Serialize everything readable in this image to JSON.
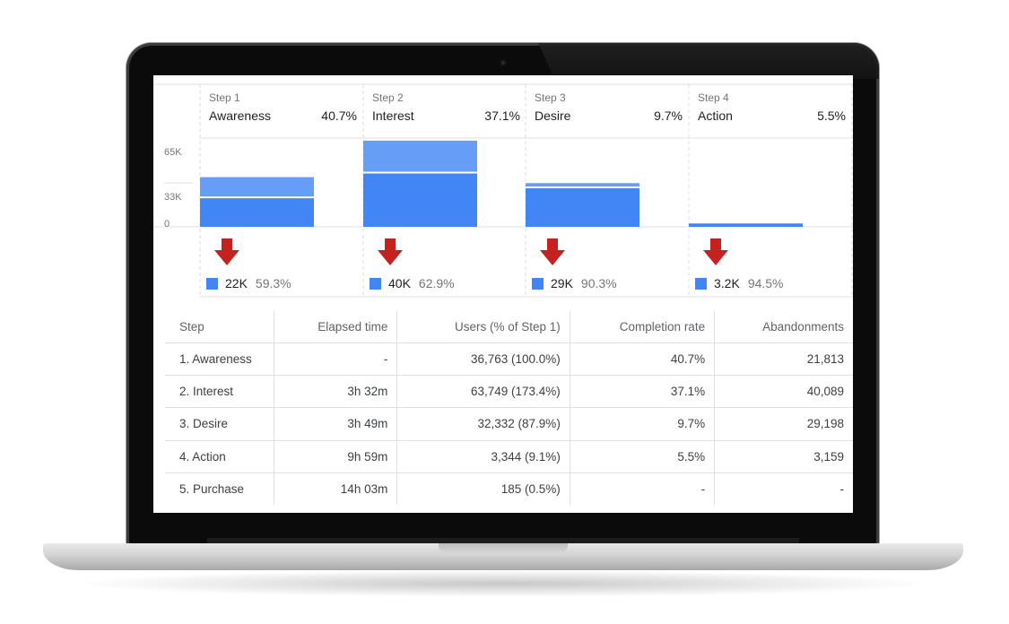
{
  "chart_data": {
    "type": "bar",
    "y_ticks": [
      "65K",
      "33K",
      "0"
    ],
    "ylim": [
      0,
      65000
    ],
    "steps": [
      {
        "num": "Step 1",
        "name": "Awareness",
        "completion": "40.7%",
        "users": 36763,
        "abandon": 21813,
        "drop_label": "22K",
        "drop_pct": "59.3%"
      },
      {
        "num": "Step 2",
        "name": "Interest",
        "completion": "37.1%",
        "users": 63749,
        "abandon": 40089,
        "drop_label": "40K",
        "drop_pct": "62.9%"
      },
      {
        "num": "Step 3",
        "name": "Desire",
        "completion": "9.7%",
        "users": 32332,
        "abandon": 29198,
        "drop_label": "29K",
        "drop_pct": "90.3%"
      },
      {
        "num": "Step 4",
        "name": "Action",
        "completion": "5.5%",
        "users": 3344,
        "abandon": 3159,
        "drop_label": "3.2K",
        "drop_pct": "94.5%"
      }
    ],
    "colors": {
      "continued": "#669df6",
      "abandoned": "#4285f4",
      "arrow": "#c5221f"
    }
  },
  "table": {
    "headers": [
      "Step",
      "Elapsed time",
      "Users (% of Step 1)",
      "Completion rate",
      "Abandonments"
    ],
    "rows": [
      [
        "1. Awareness",
        "-",
        "36,763 (100.0%)",
        "40.7%",
        "21,813"
      ],
      [
        "2. Interest",
        "3h 32m",
        "63,749 (173.4%)",
        "37.1%",
        "40,089"
      ],
      [
        "3. Desire",
        "3h 49m",
        "32,332 (87.9%)",
        "9.7%",
        "29,198"
      ],
      [
        "4. Action",
        "9h 59m",
        "3,344 (9.1%)",
        "5.5%",
        "3,159"
      ],
      [
        "5. Purchase",
        "14h 03m",
        "185 (0.5%)",
        "-",
        "-"
      ]
    ]
  }
}
